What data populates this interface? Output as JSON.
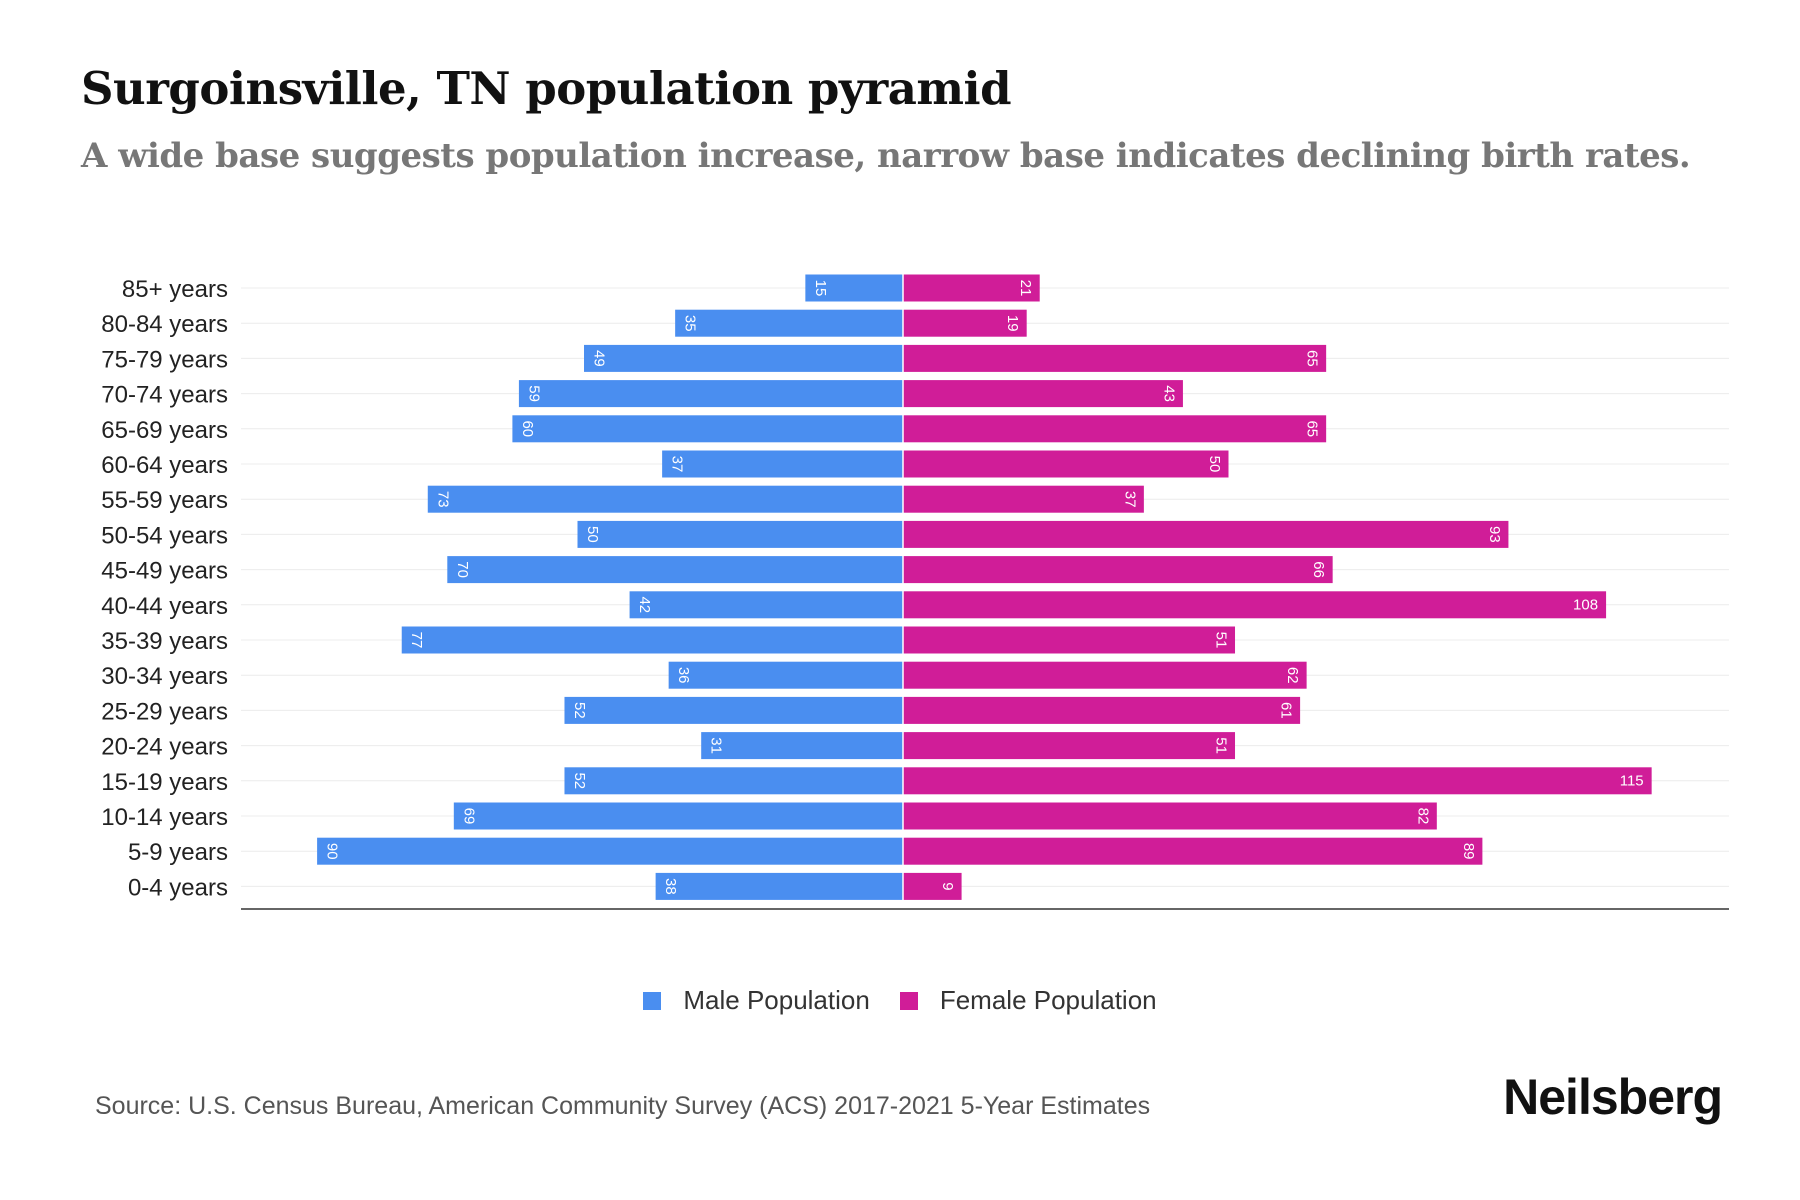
{
  "title": "Surgoinsville, TN population pyramid",
  "subtitle": "A wide base suggests population increase, narrow base indicates declining birth rates.",
  "source": "Source: U.S. Census Bureau, American Community Survey (ACS) 2017-2021 5-Year Estimates",
  "brand": "Neilsberg",
  "colors": {
    "male": "#4a8ef0",
    "female": "#d01d98"
  },
  "chart_data": {
    "type": "bar",
    "orientation": "horizontal-diverging",
    "title": "Surgoinsville, TN population pyramid",
    "categories": [
      "85+ years",
      "80-84 years",
      "75-79 years",
      "70-74 years",
      "65-69 years",
      "60-64 years",
      "55-59 years",
      "50-54 years",
      "45-49 years",
      "40-44 years",
      "35-39 years",
      "30-34 years",
      "25-29 years",
      "20-24 years",
      "15-19 years",
      "10-14 years",
      "5-9 years",
      "0-4 years"
    ],
    "series": [
      {
        "name": "Male Population",
        "values": [
          15,
          35,
          49,
          59,
          60,
          37,
          73,
          50,
          70,
          42,
          77,
          36,
          52,
          31,
          52,
          69,
          90,
          38
        ]
      },
      {
        "name": "Female Population",
        "values": [
          21,
          19,
          65,
          43,
          65,
          50,
          37,
          93,
          66,
          108,
          51,
          62,
          61,
          51,
          115,
          82,
          89,
          9
        ]
      }
    ],
    "xlim": [
      -100,
      125
    ],
    "grid": true,
    "legend_position": "bottom-center"
  }
}
